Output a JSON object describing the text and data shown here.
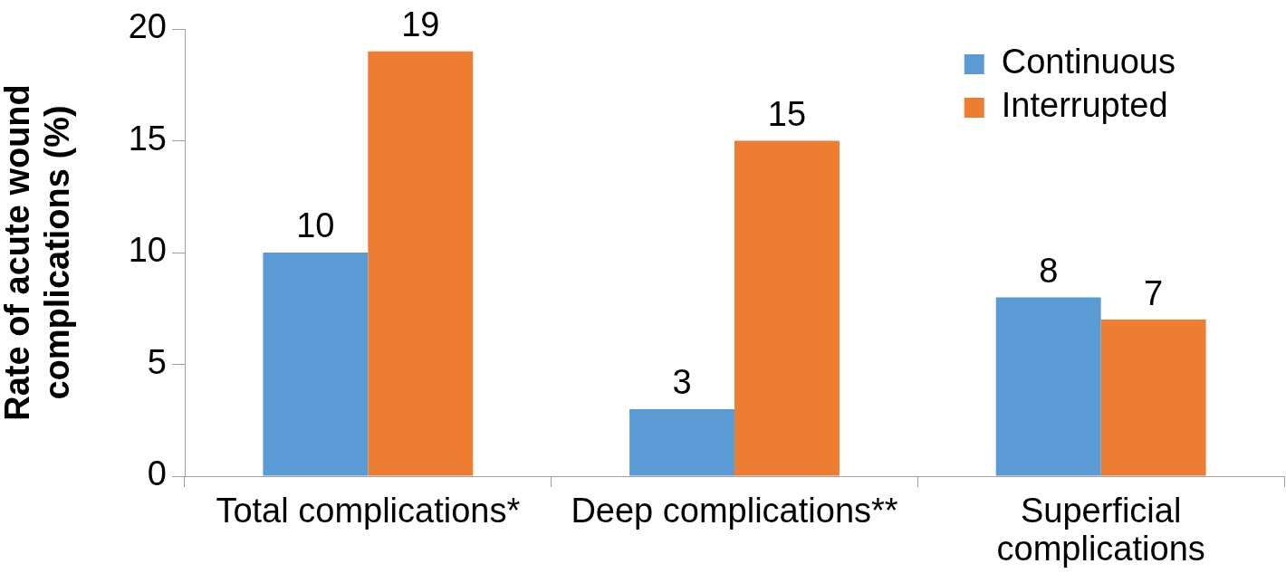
{
  "chart_data": {
    "type": "bar",
    "ylabel": "Rate of acute wound complications (%)",
    "categories": [
      "Total complications*",
      "Deep complications**",
      "Superficial complications"
    ],
    "series": [
      {
        "name": "Continuous",
        "color": "#5b9bd5",
        "values": [
          10,
          3,
          8
        ]
      },
      {
        "name": "Interrupted",
        "color": "#ed7d31",
        "values": [
          19,
          15,
          7
        ]
      }
    ],
    "ylim": [
      0,
      20
    ],
    "yticks": [
      0,
      5,
      10,
      15,
      20
    ],
    "legend": "top right",
    "data_labels": true
  }
}
